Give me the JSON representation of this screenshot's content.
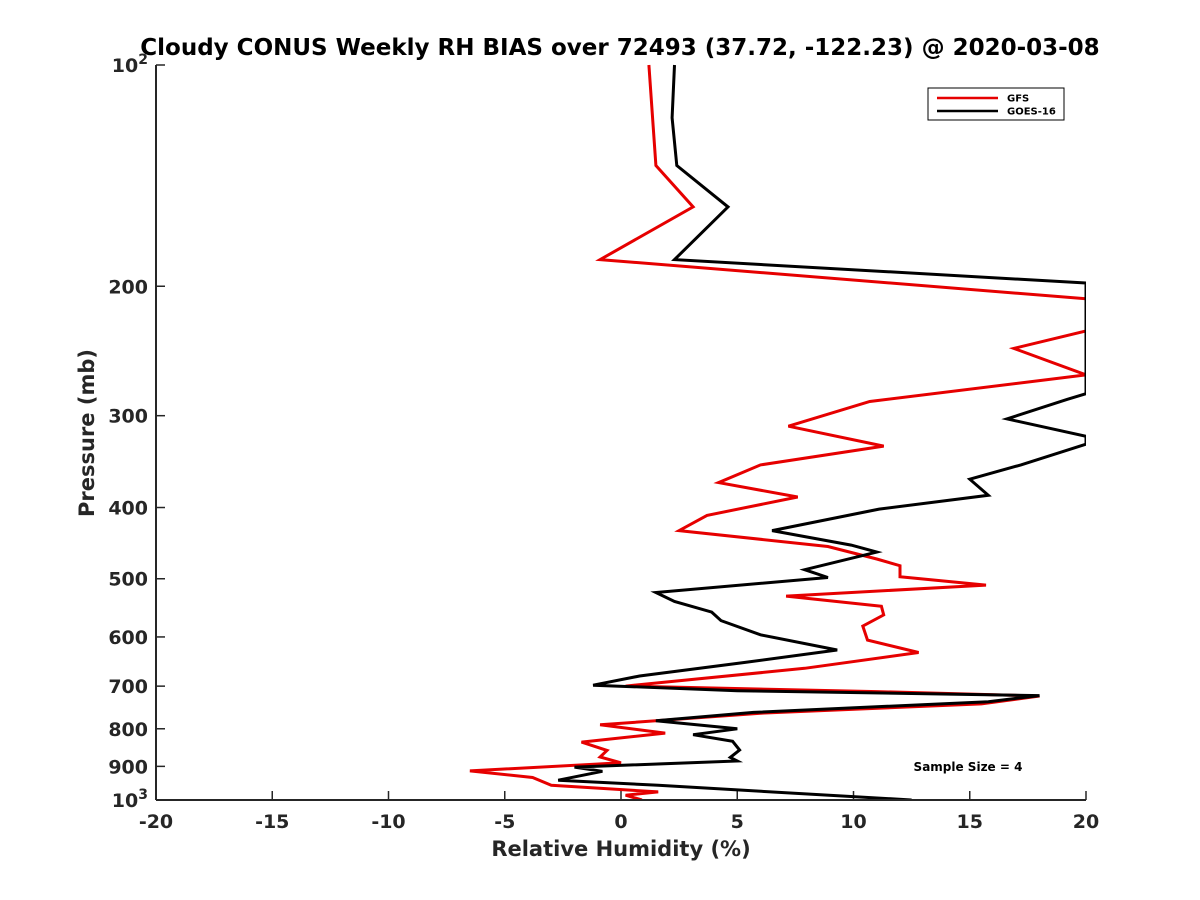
{
  "chart_data": {
    "type": "line",
    "title": "Cloudy CONUS Weekly RH BIAS over 72493 (37.72, -122.23) @ 2020-03-08",
    "xlabel": "Relative Humidity (%)",
    "ylabel": "Pressure (mb)",
    "xlim": [
      -20,
      20
    ],
    "ylim": [
      100,
      1000
    ],
    "y_scale": "log",
    "y_reversed": true,
    "grid": false,
    "legend_position": "top-right",
    "x_ticks": [
      "-20",
      "-15",
      "-10",
      "-5",
      "0",
      "5",
      "10",
      "15",
      "20"
    ],
    "y_ticks": [
      {
        "value": 100,
        "base": "10",
        "exp": "2"
      },
      {
        "value": 200,
        "label": "200"
      },
      {
        "value": 300,
        "label": "300"
      },
      {
        "value": 400,
        "label": "400"
      },
      {
        "value": 500,
        "label": "500"
      },
      {
        "value": 600,
        "label": "600"
      },
      {
        "value": 700,
        "label": "700"
      },
      {
        "value": 800,
        "label": "800"
      },
      {
        "value": 900,
        "label": "900"
      },
      {
        "value": 1000,
        "base": "10",
        "exp": "3"
      }
    ],
    "annotation": "Sample Size = 4",
    "series": [
      {
        "name": "GFS",
        "color": "#e60000",
        "points": [
          [
            1.2,
            100
          ],
          [
            1.5,
            137
          ],
          [
            3.1,
            156
          ],
          [
            -0.9,
            184
          ],
          [
            20.0,
            208
          ],
          [
            20.0,
            230
          ],
          [
            16.9,
            243
          ],
          [
            20.0,
            264
          ],
          [
            10.7,
            287
          ],
          [
            7.2,
            310
          ],
          [
            11.3,
            330
          ],
          [
            6.0,
            350
          ],
          [
            4.2,
            370
          ],
          [
            7.6,
            387
          ],
          [
            3.7,
            410
          ],
          [
            2.5,
            430
          ],
          [
            8.9,
            452
          ],
          [
            11.0,
            470
          ],
          [
            12.0,
            480
          ],
          [
            12.0,
            497
          ],
          [
            15.7,
            510
          ],
          [
            7.1,
            528
          ],
          [
            11.2,
            545
          ],
          [
            11.3,
            560
          ],
          [
            10.4,
            580
          ],
          [
            10.6,
            606
          ],
          [
            12.8,
            630
          ],
          [
            7.9,
            662
          ],
          [
            0.2,
            700
          ],
          [
            11.0,
            712
          ],
          [
            18.0,
            722
          ],
          [
            15.5,
            740
          ],
          [
            6.0,
            762
          ],
          [
            -0.9,
            790
          ],
          [
            1.9,
            811
          ],
          [
            -1.7,
            834
          ],
          [
            -0.6,
            856
          ],
          [
            -0.9,
            874
          ],
          [
            0.0,
            890
          ],
          [
            -6.5,
            913
          ],
          [
            -3.8,
            932
          ],
          [
            -3.0,
            955
          ],
          [
            1.6,
            975
          ],
          [
            0.2,
            985
          ],
          [
            0.9,
            1000
          ]
        ]
      },
      {
        "name": "GOES-16",
        "color": "#000000",
        "points": [
          [
            2.3,
            100
          ],
          [
            2.2,
            118
          ],
          [
            2.4,
            137
          ],
          [
            4.6,
            156
          ],
          [
            2.3,
            184
          ],
          [
            20.0,
            198
          ],
          [
            20.0,
            280
          ],
          [
            19.2,
            285
          ],
          [
            16.6,
            303
          ],
          [
            20.0,
            320
          ],
          [
            20.0,
            328
          ],
          [
            17.2,
            350
          ],
          [
            15.0,
            366
          ],
          [
            15.8,
            385
          ],
          [
            11.1,
            402
          ],
          [
            6.5,
            430
          ],
          [
            9.9,
            450
          ],
          [
            11.0,
            460
          ],
          [
            7.9,
            486
          ],
          [
            8.9,
            498
          ],
          [
            1.5,
            522
          ],
          [
            2.3,
            537
          ],
          [
            3.9,
            555
          ],
          [
            4.3,
            570
          ],
          [
            6.0,
            596
          ],
          [
            9.3,
            625
          ],
          [
            5.3,
            650
          ],
          [
            0.8,
            678
          ],
          [
            -1.2,
            698
          ],
          [
            5.0,
            710
          ],
          [
            18.0,
            721
          ],
          [
            15.8,
            735
          ],
          [
            5.7,
            760
          ],
          [
            1.5,
            780
          ],
          [
            5.0,
            800
          ],
          [
            3.1,
            815
          ],
          [
            4.8,
            832
          ],
          [
            5.1,
            855
          ],
          [
            4.7,
            875
          ],
          [
            5.0,
            885
          ],
          [
            -2.0,
            902
          ],
          [
            -0.8,
            914
          ],
          [
            -2.7,
            940
          ],
          [
            1.6,
            955
          ],
          [
            12.5,
            1000
          ]
        ]
      }
    ]
  }
}
